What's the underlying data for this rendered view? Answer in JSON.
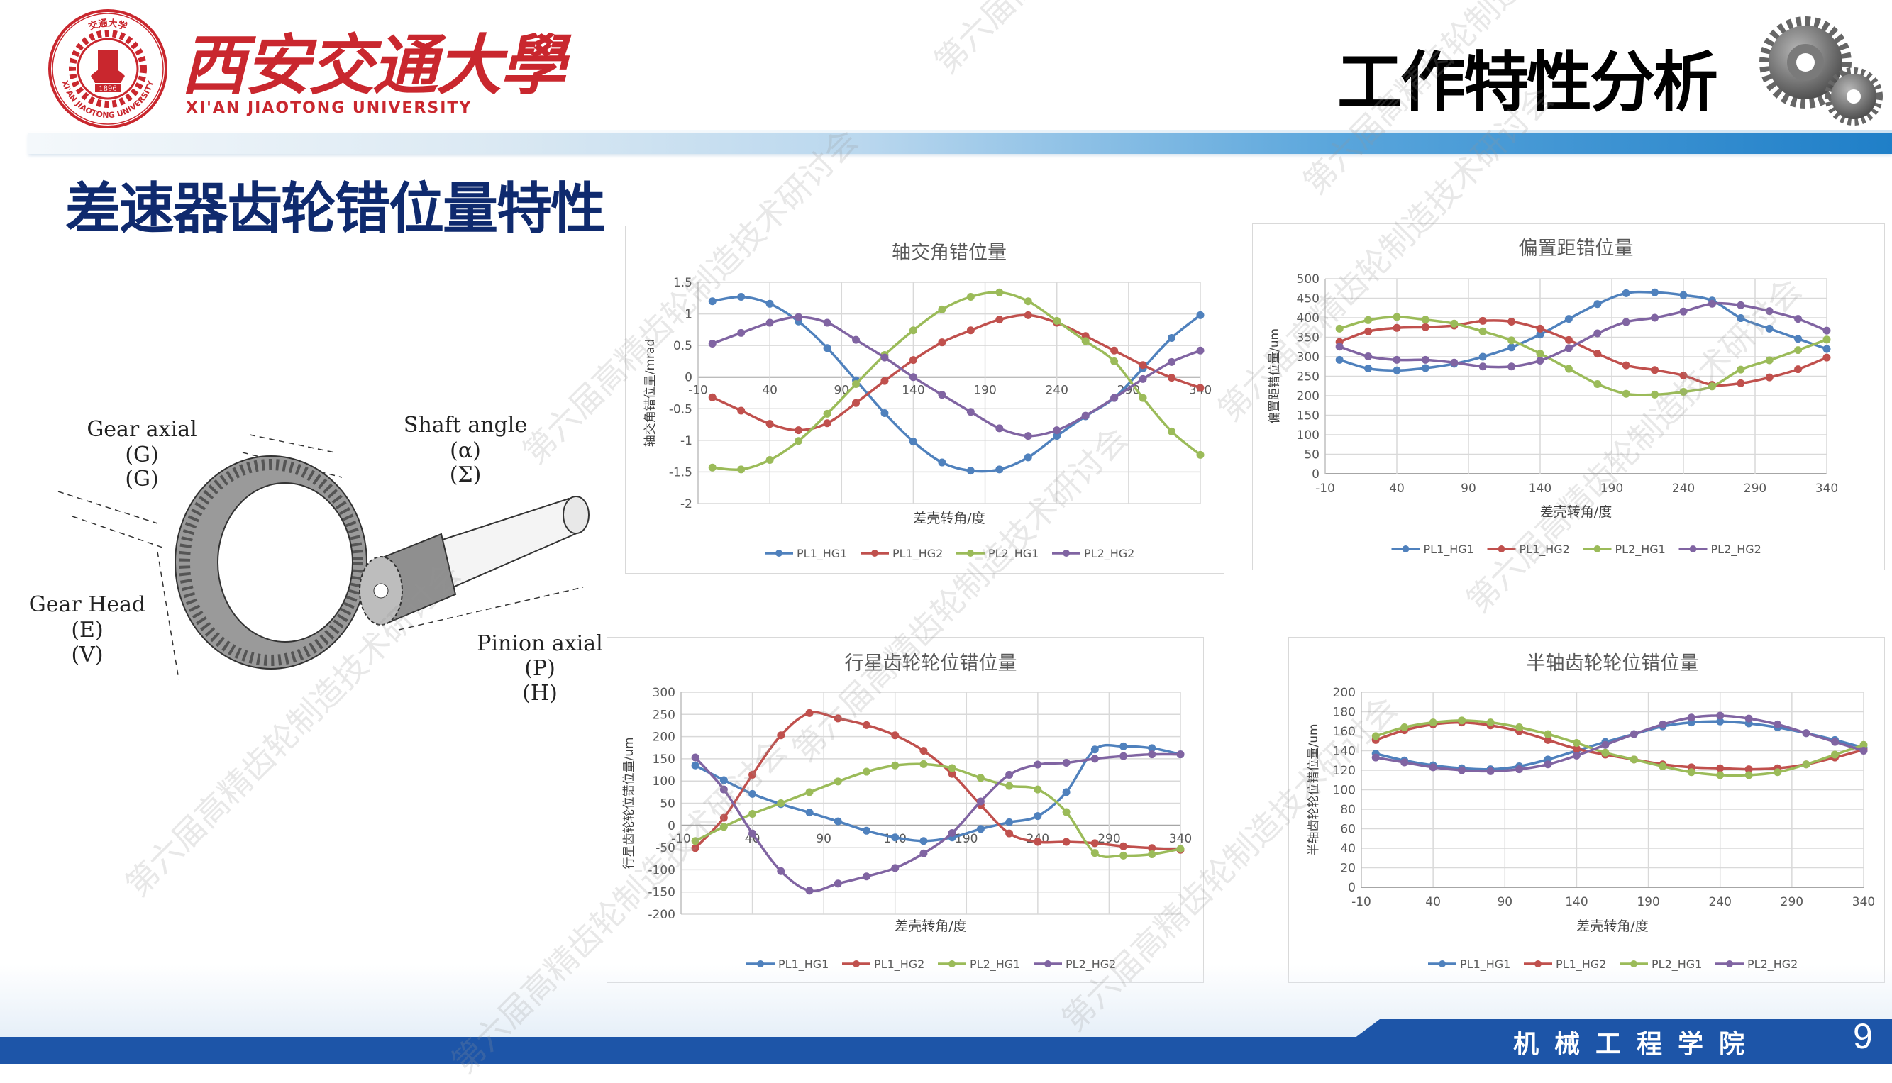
{
  "header": {
    "university_cn": "西安交通大學",
    "university_en": "XI'AN JIAOTONG UNIVERSITY",
    "seal_text_top": "交通大学",
    "seal_text_bottom": "XI'AN JIAOTONG UNIVERSITY",
    "seal_year": "1896",
    "section_title": "工作特性分析",
    "icon": "gears-icon"
  },
  "slide": {
    "title": "差速器齿轮错位量特性"
  },
  "diagram": {
    "labels": {
      "gear_axial": "Gear axial",
      "gear_axial_sym1": "(G)",
      "gear_axial_sym2": "(G)",
      "shaft_angle": "Shaft angle",
      "shaft_angle_sym1": "(α)",
      "shaft_angle_sym2": "(Σ)",
      "gear_head": "Gear Head",
      "gear_head_sym1": "(E)",
      "gear_head_sym2": "(V)",
      "pinion_axial": "Pinion axial",
      "pinion_axial_sym1": "(P)",
      "pinion_axial_sym2": "(H)"
    }
  },
  "watermark": "第六届高精齿轮制造技术研讨会",
  "footer": {
    "department": "机械工程学院",
    "page": "9",
    "bar_color": "#1d55a8"
  },
  "colors": {
    "PL1_HG1": "#4f81bd",
    "PL1_HG2": "#c0504d",
    "PL2_HG1": "#9bbb59",
    "PL2_HG2": "#8064a2"
  },
  "chart_data": [
    {
      "type": "line",
      "title": "轴交角错位量",
      "xlabel": "差壳转角/度",
      "ylabel": "轴交角错位量/mrad",
      "xlim": [
        -10,
        340
      ],
      "ylim": [
        -2,
        1.5
      ],
      "xticks": [
        -10,
        40,
        90,
        140,
        190,
        240,
        290,
        340
      ],
      "yticks": [
        1.5,
        1,
        0.5,
        0,
        -0.5,
        -1,
        -1.5,
        -2
      ],
      "grid": true,
      "legend": "bottom",
      "x": [
        0,
        20,
        40,
        60,
        80,
        100,
        120,
        140,
        160,
        180,
        200,
        220,
        240,
        260,
        280,
        300,
        320,
        340
      ],
      "series": [
        {
          "name": "PL1_HG1",
          "values": [
            1.2,
            1.27,
            1.16,
            0.88,
            0.46,
            -0.05,
            -0.57,
            -1.02,
            -1.35,
            -1.48,
            -1.46,
            -1.27,
            -0.93,
            -0.62,
            -0.33,
            0.14,
            0.62,
            0.98
          ]
        },
        {
          "name": "PL1_HG2",
          "values": [
            -0.32,
            -0.53,
            -0.74,
            -0.84,
            -0.73,
            -0.41,
            -0.06,
            0.27,
            0.55,
            0.74,
            0.91,
            0.98,
            0.86,
            0.65,
            0.42,
            0.19,
            -0.01,
            -0.17
          ]
        },
        {
          "name": "PL2_HG1",
          "values": [
            -1.43,
            -1.46,
            -1.31,
            -1.01,
            -0.58,
            -0.11,
            0.35,
            0.74,
            1.07,
            1.27,
            1.34,
            1.2,
            0.89,
            0.57,
            0.25,
            -0.33,
            -0.86,
            -1.23
          ]
        },
        {
          "name": "PL2_HG2",
          "values": [
            0.53,
            0.7,
            0.86,
            0.95,
            0.86,
            0.59,
            0.31,
            0.0,
            -0.28,
            -0.55,
            -0.81,
            -0.93,
            -0.84,
            -0.61,
            -0.33,
            -0.03,
            0.24,
            0.42
          ]
        }
      ]
    },
    {
      "type": "line",
      "title": "偏置距错位量",
      "xlabel": "差壳转角/度",
      "ylabel": "偏置距错位量/um",
      "xlim": [
        -10,
        340
      ],
      "ylim": [
        0,
        500
      ],
      "xticks": [
        -10,
        40,
        90,
        140,
        190,
        240,
        290,
        340
      ],
      "yticks": [
        500,
        450,
        400,
        350,
        300,
        250,
        200,
        150,
        100,
        50,
        0
      ],
      "grid": true,
      "legend": "bottom",
      "x": [
        0,
        20,
        40,
        60,
        80,
        100,
        120,
        140,
        160,
        180,
        200,
        220,
        240,
        260,
        280,
        300,
        320,
        340
      ],
      "series": [
        {
          "name": "PL1_HG1",
          "values": [
            292,
            270,
            265,
            271,
            282,
            300,
            324,
            357,
            397,
            435,
            463,
            465,
            458,
            444,
            399,
            372,
            346,
            320
          ]
        },
        {
          "name": "PL1_HG2",
          "values": [
            338,
            365,
            374,
            376,
            380,
            392,
            390,
            372,
            343,
            308,
            278,
            266,
            252,
            228,
            232,
            247,
            268,
            298
          ]
        },
        {
          "name": "PL2_HG1",
          "values": [
            372,
            394,
            402,
            395,
            385,
            365,
            342,
            308,
            269,
            230,
            205,
            203,
            210,
            224,
            267,
            291,
            317,
            344
          ]
        },
        {
          "name": "PL2_HG2",
          "values": [
            326,
            301,
            292,
            292,
            285,
            275,
            275,
            290,
            322,
            360,
            389,
            400,
            416,
            436,
            432,
            417,
            397,
            367
          ]
        }
      ]
    },
    {
      "type": "line",
      "title": "行星齿轮轮位错位量",
      "xlabel": "差壳转角/度",
      "ylabel": "行星齿轮轮位错位量/um",
      "xlim": [
        -10,
        340
      ],
      "ylim": [
        -200,
        300
      ],
      "xticks": [
        -10,
        40,
        90,
        140,
        190,
        240,
        290,
        340
      ],
      "yticks": [
        300,
        250,
        200,
        150,
        100,
        50,
        0,
        -50,
        -100,
        -150,
        -200
      ],
      "grid": true,
      "legend": "bottom",
      "x": [
        0,
        20,
        40,
        60,
        80,
        100,
        120,
        140,
        160,
        180,
        200,
        220,
        240,
        260,
        280,
        300,
        320,
        340
      ],
      "series": [
        {
          "name": "PL1_HG1",
          "values": [
            135,
            102,
            71,
            48,
            29,
            9,
            -12,
            -27,
            -35,
            -27,
            -8,
            7,
            21,
            75,
            171,
            178,
            174,
            160
          ]
        },
        {
          "name": "PL1_HG2",
          "values": [
            -51,
            17,
            114,
            203,
            253,
            241,
            226,
            203,
            168,
            116,
            46,
            -18,
            -37,
            -37,
            -40,
            -47,
            -51,
            -55
          ]
        },
        {
          "name": "PL2_HG1",
          "values": [
            -35,
            -3,
            26,
            50,
            75,
            99,
            121,
            135,
            138,
            129,
            107,
            89,
            81,
            30,
            -62,
            -68,
            -65,
            -53
          ]
        },
        {
          "name": "PL2_HG2",
          "values": [
            153,
            81,
            -18,
            -103,
            -147,
            -131,
            -115,
            -96,
            -63,
            -17,
            54,
            114,
            137,
            141,
            150,
            156,
            160,
            160
          ]
        }
      ]
    },
    {
      "type": "line",
      "title": "半轴齿轮轮位错位量",
      "xlabel": "差壳转角/度",
      "ylabel": "半轴齿轮轮位错位量/um",
      "xlim": [
        -10,
        340
      ],
      "ylim": [
        0,
        200
      ],
      "xticks": [
        -10,
        40,
        90,
        140,
        190,
        240,
        290,
        340
      ],
      "yticks": [
        200,
        180,
        160,
        140,
        120,
        100,
        80,
        60,
        40,
        20,
        0
      ],
      "grid": true,
      "legend": "bottom",
      "x": [
        0,
        20,
        40,
        60,
        80,
        100,
        120,
        140,
        160,
        180,
        200,
        220,
        240,
        260,
        280,
        300,
        320,
        340
      ],
      "series": [
        {
          "name": "PL1_HG1",
          "values": [
            137,
            130,
            125,
            122,
            121,
            124,
            131,
            140,
            149,
            157,
            165,
            169,
            170,
            168,
            164,
            158,
            151,
            143
          ]
        },
        {
          "name": "PL1_HG2",
          "values": [
            151,
            161,
            167,
            169,
            166,
            160,
            151,
            142,
            136,
            131,
            126,
            123,
            122,
            121,
            122,
            126,
            133,
            141
          ]
        },
        {
          "name": "PL2_HG1",
          "values": [
            155,
            164,
            169,
            171,
            169,
            164,
            157,
            148,
            138,
            131,
            124,
            118,
            115,
            115,
            118,
            126,
            136,
            146
          ]
        },
        {
          "name": "PL2_HG2",
          "values": [
            133,
            128,
            123,
            120,
            119,
            121,
            126,
            135,
            146,
            157,
            167,
            174,
            176,
            173,
            167,
            158,
            149,
            140
          ]
        }
      ]
    }
  ]
}
